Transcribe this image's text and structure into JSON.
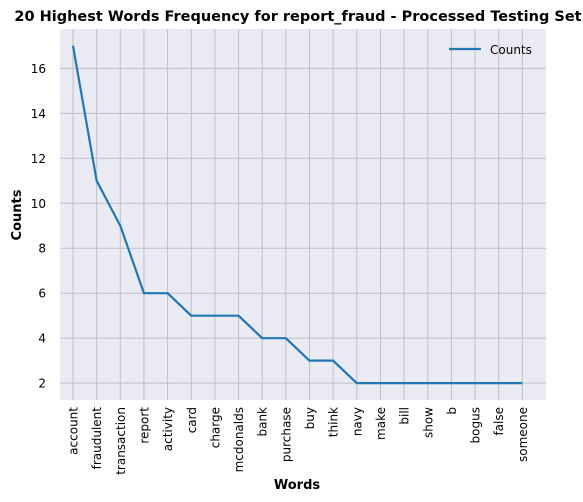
{
  "chart_data": {
    "type": "line",
    "title": "20 Highest Words Frequency for report_fraud - Processed Testing Set",
    "xlabel": "Words",
    "ylabel": "Counts",
    "categories": [
      "account",
      "fraudulent",
      "transaction",
      "report",
      "activity",
      "card",
      "charge",
      "mcdonalds",
      "bank",
      "purchase",
      "buy",
      "think",
      "navy",
      "make",
      "bill",
      "show",
      "b",
      "bogus",
      "false",
      "someone"
    ],
    "series": [
      {
        "name": "Counts",
        "values": [
          17,
          11,
          9,
          6,
          6,
          5,
          5,
          5,
          4,
          4,
          3,
          3,
          2,
          2,
          2,
          2,
          2,
          2,
          2,
          2
        ]
      }
    ],
    "yticks": [
      2,
      4,
      6,
      8,
      10,
      12,
      14,
      16
    ],
    "ylim": [
      1.25,
      17.75
    ],
    "grid": true,
    "legend_position": "top-right",
    "colors": {
      "line": "#1f77b4",
      "plot_background": "#eaeaf2",
      "grid": "#bfbfc4"
    }
  }
}
